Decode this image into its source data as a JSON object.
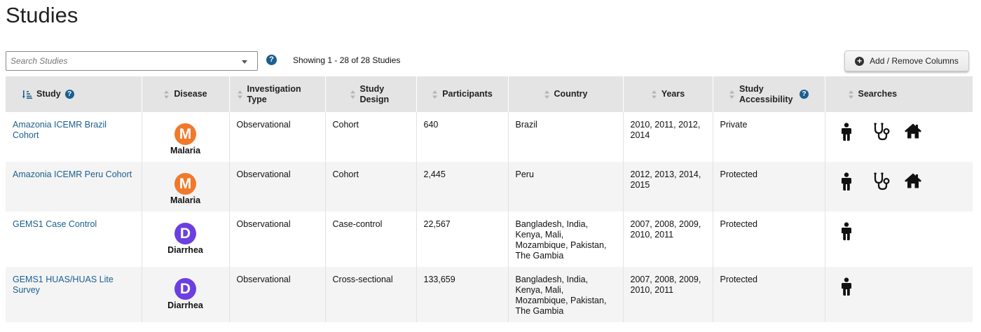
{
  "page": {
    "title": "Studies"
  },
  "toolbar": {
    "search_placeholder": "Search Studies",
    "showing": "Showing 1 - 28 of 28 Studies",
    "add_remove_label": "Add / Remove Columns",
    "help_glyph": "?",
    "plus_glyph": "+"
  },
  "columns": {
    "study": "Study",
    "disease": "Disease",
    "investigation_type": "Investigation Type",
    "study_design": "Study Design",
    "participants": "Participants",
    "country": "Country",
    "years": "Years",
    "study_accessibility": "Study Accessibility",
    "searches": "Searches"
  },
  "rows": [
    {
      "study": "Amazonia ICEMR Brazil Cohort",
      "disease": {
        "letter": "M",
        "name": "Malaria",
        "color": "#f07a2b"
      },
      "investigation_type": "Observational",
      "study_design": "Cohort",
      "participants": "640",
      "country": "Brazil",
      "years": "2010, 2011, 2012, 2014",
      "accessibility": "Private",
      "searches": [
        "participant-icon",
        "stethoscope-icon",
        "household-icon"
      ]
    },
    {
      "study": "Amazonia ICEMR Peru Cohort",
      "disease": {
        "letter": "M",
        "name": "Malaria",
        "color": "#f07a2b"
      },
      "investigation_type": "Observational",
      "study_design": "Cohort",
      "participants": "2,445",
      "country": "Peru",
      "years": "2012, 2013, 2014, 2015",
      "accessibility": "Protected",
      "searches": [
        "participant-icon",
        "stethoscope-icon",
        "household-icon"
      ]
    },
    {
      "study": "GEMS1 Case Control",
      "disease": {
        "letter": "D",
        "name": "Diarrhea",
        "color": "#6b3fe0"
      },
      "investigation_type": "Observational",
      "study_design": "Case-control",
      "participants": "22,567",
      "country": "Bangladesh, India, Kenya, Mali, Mozambique, Pakistan, The Gambia",
      "years": "2007, 2008, 2009, 2010, 2011",
      "accessibility": "Protected",
      "searches": [
        "participant-icon"
      ]
    },
    {
      "study": "GEMS1 HUAS/HUAS Lite Survey",
      "disease": {
        "letter": "D",
        "name": "Diarrhea",
        "color": "#6b3fe0"
      },
      "investigation_type": "Observational",
      "study_design": "Cross-sectional",
      "participants": "133,659",
      "country": "Bangladesh, India, Kenya, Mali, Mozambique, Pakistan, The Gambia",
      "years": "2007, 2008, 2009, 2010, 2011",
      "accessibility": "Protected",
      "searches": [
        "participant-icon"
      ]
    }
  ]
}
